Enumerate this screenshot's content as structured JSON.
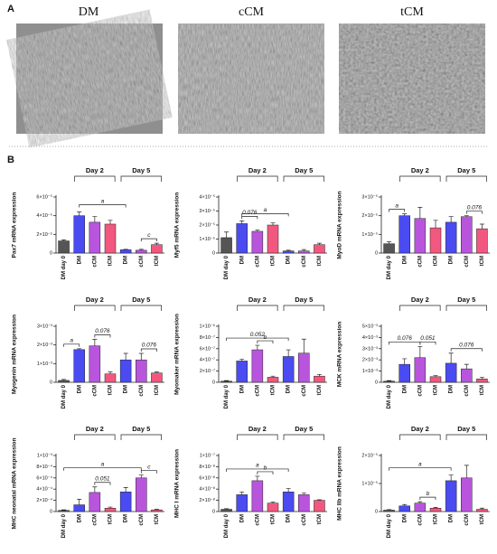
{
  "panel_a": {
    "label": "A",
    "images": [
      "DM",
      "cCM",
      "tCM"
    ]
  },
  "panel_b": {
    "label": "B",
    "groups": [
      "Day 2",
      "Day 5"
    ]
  },
  "chart_data": [
    {
      "type": "bar",
      "ylabel": "Pax7 mRNA expression",
      "categories": [
        "DM day 0",
        "DM",
        "cCM",
        "tCM",
        "DM",
        "cCM",
        "tCM"
      ],
      "colors": [
        "#555555",
        "#4b4bf2",
        "#b955dd",
        "#f2587f",
        "#4b4bf2",
        "#b955dd",
        "#f2587f"
      ],
      "values": [
        1.3e-05,
        4e-05,
        3.3e-05,
        3.1e-05,
        3.5e-06,
        3e-06,
        9e-06
      ],
      "errors": [
        1e-06,
        4e-06,
        6e-06,
        4e-06,
        5e-07,
        1e-06,
        1.5e-06
      ],
      "ylim": [
        0,
        6e-05
      ],
      "yticks": [
        0,
        {
          "value": 2e-05,
          "label": "2×10⁻⁵"
        },
        {
          "value": 4e-05,
          "label": "4×10⁻⁵"
        },
        {
          "value": 6e-05,
          "label": "6×10⁻⁵"
        }
      ],
      "annotations": [
        "a",
        "c"
      ]
    },
    {
      "type": "bar",
      "ylabel": "Myf5 mRNA expression",
      "categories": [
        "DM day 0",
        "DM",
        "cCM",
        "tCM",
        "DM",
        "cCM",
        "tCM"
      ],
      "colors": [
        "#555555",
        "#4b4bf2",
        "#b955dd",
        "#f2587f",
        "#4b4bf2",
        "#b955dd",
        "#f2587f"
      ],
      "values": [
        1.1e-05,
        2.1e-05,
        1.55e-05,
        2e-05,
        1.5e-06,
        1.5e-06,
        6e-06
      ],
      "errors": [
        4e-06,
        2e-06,
        1e-06,
        1.5e-06,
        5e-07,
        1e-06,
        1e-06
      ],
      "ylim": [
        0,
        4e-05
      ],
      "yticks": [
        0,
        {
          "value": 1e-05,
          "label": "1×10⁻⁵"
        },
        {
          "value": 2e-05,
          "label": "2×10⁻⁵"
        },
        {
          "value": 3e-05,
          "label": "3×10⁻⁵"
        },
        {
          "value": 4e-05,
          "label": "4×10⁻⁵"
        }
      ],
      "annotations": [
        "0.076",
        "a"
      ]
    },
    {
      "type": "bar",
      "ylabel": "MyoD mRNA expression",
      "categories": [
        "DM day 0",
        "DM",
        "cCM",
        "tCM",
        "DM",
        "cCM",
        "tCM"
      ],
      "colors": [
        "#555555",
        "#4b4bf2",
        "#b955dd",
        "#f2587f",
        "#4b4bf2",
        "#b955dd",
        "#f2587f"
      ],
      "values": [
        5e-06,
        2e-05,
        1.85e-05,
        1.35e-05,
        1.65e-05,
        1.95e-05,
        1.3e-05
      ],
      "errors": [
        1e-06,
        1e-06,
        6e-06,
        4e-06,
        3e-06,
        5e-07,
        2.5e-06
      ],
      "ylim": [
        0,
        3e-05
      ],
      "yticks": [
        0,
        {
          "value": 1e-05,
          "label": "1×10⁻⁵"
        },
        {
          "value": 2e-05,
          "label": "2×10⁻⁵"
        },
        {
          "value": 3e-05,
          "label": "3×10⁻⁵"
        }
      ],
      "annotations": [
        "a",
        "0.076"
      ]
    },
    {
      "type": "bar",
      "ylabel": "Myogenin mRNA expression",
      "categories": [
        "DM day 0",
        "DM",
        "cCM",
        "tCM",
        "DM",
        "cCM",
        "tCM"
      ],
      "colors": [
        "#555555",
        "#4b4bf2",
        "#b955dd",
        "#f2587f",
        "#4b4bf2",
        "#b955dd",
        "#f2587f"
      ],
      "values": [
        0.0001,
        0.00175,
        0.00195,
        0.00045,
        0.0012,
        0.0012,
        0.0005
      ],
      "errors": [
        5e-05,
        5e-05,
        0.00035,
        0.0001,
        0.00035,
        0.00035,
        5e-05
      ],
      "ylim": [
        0,
        0.003
      ],
      "yticks": [
        0,
        {
          "value": 0.001,
          "label": "1×10⁻³"
        },
        {
          "value": 0.002,
          "label": "2×10⁻³"
        },
        {
          "value": 0.003,
          "label": "3×10⁻³"
        }
      ],
      "annotations": [
        "a",
        "0.076",
        "0.076"
      ]
    },
    {
      "type": "bar",
      "ylabel": "Myomaker mRNA expression",
      "categories": [
        "DM day 0",
        "DM",
        "cCM",
        "tCM",
        "DM",
        "cCM",
        "tCM"
      ],
      "colors": [
        "#555555",
        "#4b4bf2",
        "#b955dd",
        "#f2587f",
        "#4b4bf2",
        "#b955dd",
        "#f2587f"
      ],
      "values": [
        2e-08,
        3.8e-07,
        5.8e-07,
        9e-08,
        4.6e-07,
        5.2e-07,
        1.1e-07
      ],
      "errors": [
        1e-08,
        3e-08,
        8e-08,
        2e-08,
        1.2e-07,
        2.5e-07,
        3e-08
      ],
      "ylim": [
        0,
        1e-06
      ],
      "yticks": [
        0,
        {
          "value": 2e-07,
          "label": "2×10⁻⁷"
        },
        {
          "value": 4e-07,
          "label": "4×10⁻⁷"
        },
        {
          "value": 6e-07,
          "label": "6×10⁻⁷"
        },
        {
          "value": 8e-07,
          "label": "8×10⁻⁷"
        },
        {
          "value": 1e-06,
          "label": "1×10⁻⁶"
        }
      ],
      "annotations": [
        "0.052",
        "b"
      ]
    },
    {
      "type": "bar",
      "ylabel": "MCK mRNA expression",
      "categories": [
        "DM day 0",
        "DM",
        "cCM",
        "tCM",
        "DM",
        "cCM",
        "tCM"
      ],
      "colors": [
        "#555555",
        "#4b4bf2",
        "#b955dd",
        "#f2587f",
        "#4b4bf2",
        "#b955dd",
        "#f2587f"
      ],
      "values": [
        0.0001,
        0.0016,
        0.0022,
        0.0005,
        0.0017,
        0.0012,
        0.0003
      ],
      "errors": [
        5e-05,
        0.0005,
        0.001,
        0.0001,
        0.0009,
        0.0004,
        0.00015
      ],
      "ylim": [
        0,
        0.005
      ],
      "yticks": [
        0,
        {
          "value": 0.001,
          "label": "1×10⁻³"
        },
        {
          "value": 0.002,
          "label": "2×10⁻³"
        },
        {
          "value": 0.003,
          "label": "3×10⁻³"
        },
        {
          "value": 0.004,
          "label": "4×10⁻³"
        },
        {
          "value": 0.005,
          "label": "5×10⁻³"
        }
      ],
      "annotations": [
        "0.076",
        "0.051",
        "0.076"
      ]
    },
    {
      "type": "bar",
      "ylabel": "MHC neonatal mRNA expression",
      "categories": [
        "DM day 0",
        "DM",
        "cCM",
        "tCM",
        "DM",
        "cCM",
        "tCM"
      ],
      "colors": [
        "#555555",
        "#4b4bf2",
        "#b955dd",
        "#f2587f",
        "#4b4bf2",
        "#b955dd",
        "#f2587f"
      ],
      "values": [
        2e-05,
        0.00012,
        0.00034,
        6e-05,
        0.00035,
        0.0006,
        3e-05
      ],
      "errors": [
        1e-05,
        0.0001,
        0.0001,
        2e-05,
        8e-05,
        5e-05,
        1e-05
      ],
      "ylim": [
        0,
        0.001
      ],
      "yticks": [
        0,
        {
          "value": 0.0002,
          "label": "2×10⁻⁴"
        },
        {
          "value": 0.0004,
          "label": "4×10⁻⁴"
        },
        {
          "value": 0.0006,
          "label": "6×10⁻⁴"
        },
        {
          "value": 0.0008,
          "label": "8×10⁻⁴"
        },
        {
          "value": 0.001,
          "label": "1×10⁻³"
        }
      ],
      "annotations": [
        "a",
        "0.051",
        "c"
      ]
    },
    {
      "type": "bar",
      "ylabel": "MHC I mRNA expression",
      "categories": [
        "DM day 0",
        "DM",
        "cCM",
        "tCM",
        "DM",
        "cCM",
        "tCM"
      ],
      "colors": [
        "#555555",
        "#4b4bf2",
        "#b955dd",
        "#f2587f",
        "#4b4bf2",
        "#b955dd",
        "#f2587f"
      ],
      "values": [
        4e-09,
        3e-08,
        5.5e-08,
        1.5e-08,
        3.5e-08,
        3e-08,
        2e-08
      ],
      "errors": [
        1e-09,
        5e-09,
        8e-09,
        2e-09,
        6e-09,
        3e-09,
        1e-09
      ],
      "ylim": [
        0,
        1e-07
      ],
      "yticks": [
        0,
        {
          "value": 2e-08,
          "label": "2×10⁻⁸"
        },
        {
          "value": 4e-08,
          "label": "4×10⁻⁸"
        },
        {
          "value": 6e-08,
          "label": "6×10⁻⁸"
        },
        {
          "value": 8e-08,
          "label": "8×10⁻⁸"
        },
        {
          "value": 1e-07,
          "label": "1×10⁻⁷"
        }
      ],
      "annotations": [
        "a",
        "b"
      ]
    },
    {
      "type": "bar",
      "ylabel": "MHC IIb mRNA expression",
      "categories": [
        "DM day 0",
        "DM",
        "cCM",
        "tCM",
        "DM",
        "cCM",
        "tCM"
      ],
      "colors": [
        "#555555",
        "#4b4bf2",
        "#b955dd",
        "#f2587f",
        "#4b4bf2",
        "#b955dd",
        "#f2587f"
      ],
      "values": [
        5e-07,
        2e-06,
        3e-06,
        1.2e-06,
        1.1e-05,
        1.2e-05,
        8e-07
      ],
      "errors": [
        2e-07,
        5e-07,
        5e-07,
        3e-07,
        2e-06,
        4.5e-06,
        4e-07
      ],
      "ylim": [
        0,
        2e-05
      ],
      "yticks": [
        0,
        {
          "value": 1e-05,
          "label": "1×10⁻⁵"
        },
        {
          "value": 2e-05,
          "label": "2×10⁻⁵"
        }
      ],
      "annotations": [
        "a",
        "b"
      ]
    }
  ]
}
